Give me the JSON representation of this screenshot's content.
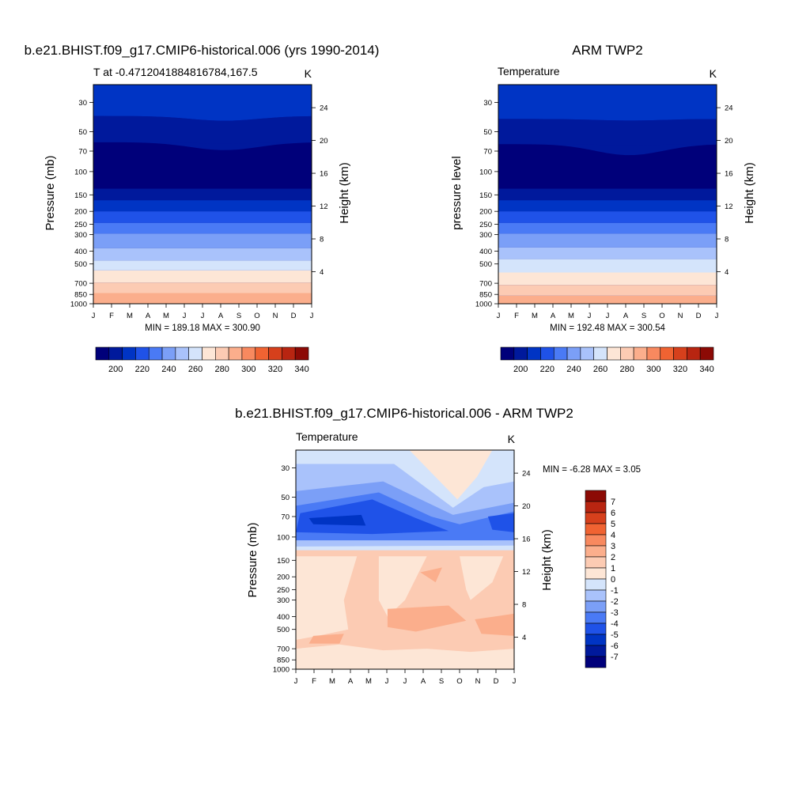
{
  "figure": {
    "panels": [
      {
        "title": "b.e21.BHIST.f09_g17.CMIP6-historical.006 (yrs 1990-2014)",
        "left_string": "T at -0.4712041884816784,167.5",
        "right_string": "K",
        "ylabel_left": "Pressure (mb)",
        "ylabel_right": "Height (km)",
        "minmax": "MIN = 189.18 MAX = 300.90"
      },
      {
        "title": "ARM TWP2",
        "left_string": "Temperature",
        "right_string": "K",
        "ylabel_left": "pressure level",
        "ylabel_right": "Height (km)",
        "minmax": "MIN = 192.48 MAX = 300.54"
      },
      {
        "title": "b.e21.BHIST.f09_g17.CMIP6-historical.006 - ARM TWP2",
        "left_string": "Temperature",
        "right_string": "K",
        "ylabel_left": "Pressure (mb)",
        "ylabel_right": "Height (km)",
        "minmax": "MIN =  -6.28 MAX =   3.05"
      }
    ]
  },
  "chart_data": [
    {
      "type": "heatmap",
      "title": "b.e21.BHIST.f09_g17.CMIP6-historical.006 (yrs 1990-2014)",
      "x_tick_labels": [
        "J",
        "F",
        "M",
        "A",
        "M",
        "J",
        "J",
        "A",
        "S",
        "O",
        "N",
        "D",
        "J"
      ],
      "pressure_ticks": [
        30,
        50,
        70,
        100,
        150,
        200,
        250,
        300,
        400,
        500,
        700,
        850,
        1000
      ],
      "height_ticks": [
        4,
        8,
        12,
        16,
        20,
        24
      ],
      "ylim": [
        1000,
        22
      ],
      "units": "K",
      "contour_levels": [
        195,
        200,
        205,
        210,
        215,
        220,
        225,
        230,
        235,
        240,
        245,
        250,
        255,
        260,
        265,
        270,
        275,
        280,
        285,
        290,
        295,
        300
      ],
      "series": [
        {
          "months_temperature_at_1000mb": [
            299.5,
            299.6,
            299.8,
            299.9,
            299.9,
            299.8,
            299.7,
            299.8,
            299.9,
            300.0,
            300.2,
            299.9
          ]
        },
        {
          "months_temperature_at_100mb": [
            191.5,
            191.2,
            191.0,
            190.8,
            190.2,
            189.9,
            189.5,
            189.2,
            189.6,
            190.0,
            190.5,
            191.2
          ]
        }
      ],
      "colorbar_labels": [
        200,
        220,
        240,
        260,
        280,
        300,
        320,
        340
      ],
      "colorbar_levels": [
        195,
        200,
        205,
        210,
        220,
        230,
        240,
        250,
        260,
        270,
        280,
        290,
        300,
        310,
        320,
        330,
        340,
        350
      ]
    },
    {
      "type": "heatmap",
      "title": "ARM TWP2",
      "x_tick_labels": [
        "J",
        "F",
        "M",
        "A",
        "M",
        "J",
        "J",
        "A",
        "S",
        "O",
        "N",
        "D",
        "J"
      ],
      "pressure_ticks": [
        30,
        50,
        70,
        100,
        150,
        200,
        250,
        300,
        400,
        500,
        700,
        850,
        1000
      ],
      "height_ticks": [
        4,
        8,
        12,
        16,
        20,
        24
      ],
      "ylim": [
        1000,
        22
      ],
      "units": "K",
      "colorbar_labels": [
        200,
        220,
        240,
        260,
        280,
        300,
        320,
        340
      ]
    },
    {
      "type": "heatmap",
      "title": "b.e21.BHIST.f09_g17.CMIP6-historical.006 - ARM TWP2",
      "x_tick_labels": [
        "J",
        "F",
        "M",
        "A",
        "M",
        "J",
        "J",
        "A",
        "S",
        "O",
        "N",
        "D",
        "J"
      ],
      "pressure_ticks": [
        30,
        50,
        70,
        100,
        150,
        200,
        250,
        300,
        400,
        500,
        700,
        850,
        1000
      ],
      "height_ticks": [
        4,
        8,
        12,
        16,
        20,
        24
      ],
      "ylim": [
        1000,
        22
      ],
      "units": "K",
      "colorbar_labels": [
        7,
        6,
        5,
        4,
        3,
        2,
        1,
        0,
        -1,
        -2,
        -3,
        -4,
        -5,
        -6,
        -7
      ]
    }
  ],
  "colors": {
    "temp_palette": [
      "#00007a",
      "#00199c",
      "#0034c4",
      "#1f52e8",
      "#4a7af5",
      "#7b9ff7",
      "#a9c2fb",
      "#d4e4fb",
      "#fde6d6",
      "#fccbb3",
      "#fbae8c",
      "#f8895f",
      "#f06332",
      "#d6401c",
      "#b82511",
      "#8c0a05"
    ],
    "diff_palette": [
      "#00007a",
      "#00199c",
      "#0034c4",
      "#1f52e8",
      "#4a7af5",
      "#7b9ff7",
      "#a9c2fb",
      "#d4e4fb",
      "#fde6d6",
      "#fccbb3",
      "#fbae8c",
      "#f8895f",
      "#f06332",
      "#d6401c",
      "#b82511",
      "#8c0a05"
    ]
  }
}
